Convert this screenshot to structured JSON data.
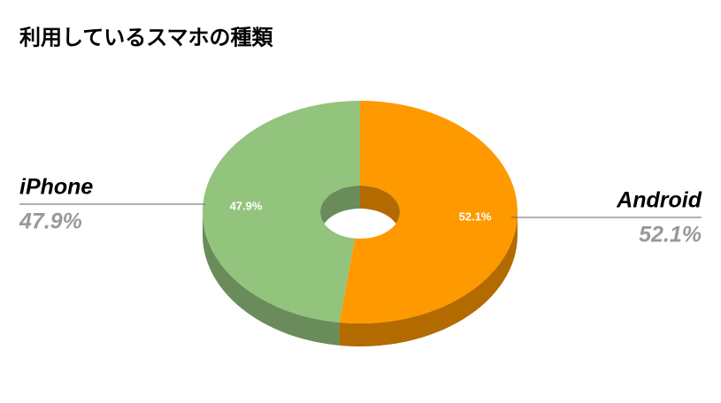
{
  "chart_data": {
    "type": "donut",
    "title": "利用しているスマホの種類",
    "categories": [
      "iPhone",
      "Android"
    ],
    "values": [
      47.9,
      52.1
    ],
    "value_labels": [
      "47.9%",
      "52.1%"
    ],
    "colors": [
      "#93c47d",
      "#ff9900"
    ],
    "side_colors": [
      "#6a8c5a",
      "#b36b00"
    ]
  }
}
